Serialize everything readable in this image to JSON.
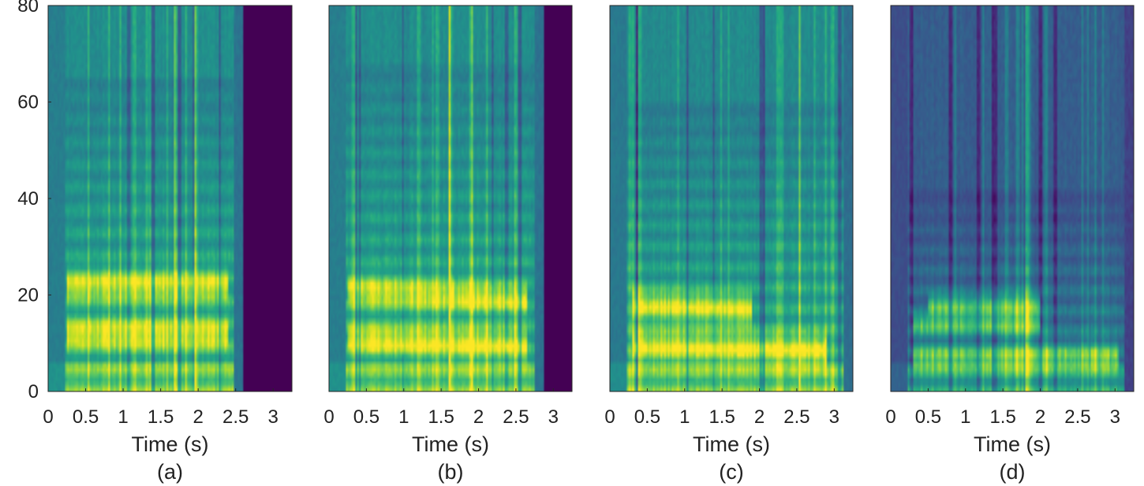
{
  "chart_data": [
    {
      "type": "heatmap",
      "panel_label": "(a)",
      "xlabel": "Time (s)",
      "ylabel": "",
      "xlim": [
        0,
        3.25
      ],
      "ylim": [
        0,
        80
      ],
      "xticks": [
        "0",
        "0.5",
        "1",
        "1.5",
        "2",
        "2.5",
        "3"
      ],
      "yticks": [
        "0",
        "20",
        "40",
        "60",
        "80"
      ],
      "colormap": "viridis",
      "content_end_s": 2.6,
      "padding_color": "#440154",
      "formant_bands": [
        {
          "center": 12,
          "width": 3,
          "start_s": 0.25,
          "end_s": 2.4,
          "slope": 0
        },
        {
          "center": 22,
          "width": 3,
          "start_s": 0.25,
          "end_s": 2.4,
          "slope": 0
        }
      ],
      "harmonic_spacing": 4.7,
      "max_harmonic_bin": 65,
      "background_level": 0.35,
      "seed": 11
    },
    {
      "type": "heatmap",
      "panel_label": "(b)",
      "xlabel": "Time (s)",
      "ylabel": "",
      "xlim": [
        0,
        3.25
      ],
      "ylim": [
        0,
        80
      ],
      "xticks": [
        "0",
        "0.5",
        "1",
        "1.5",
        "2",
        "2.5",
        "3"
      ],
      "yticks": [],
      "colormap": "viridis",
      "content_end_s": 2.87,
      "padding_color": "#440154",
      "formant_bands": [
        {
          "center": 11,
          "width": 3,
          "start_s": 0.25,
          "end_s": 2.65,
          "slope": -1.5
        },
        {
          "center": 21,
          "width": 3,
          "start_s": 0.25,
          "end_s": 2.65,
          "slope": -2
        }
      ],
      "harmonic_spacing": 4.5,
      "max_harmonic_bin": 68,
      "background_level": 0.35,
      "seed": 23
    },
    {
      "type": "heatmap",
      "panel_label": "(c)",
      "xlabel": "Time (s)",
      "ylabel": "",
      "xlim": [
        0,
        3.25
      ],
      "ylim": [
        0,
        80
      ],
      "xticks": [
        "0",
        "0.5",
        "1",
        "1.5",
        "2",
        "2.5",
        "3"
      ],
      "yticks": [],
      "colormap": "viridis",
      "content_end_s": 3.25,
      "padding_color": "#440154",
      "formant_bands": [
        {
          "center": 9.5,
          "width": 3,
          "start_s": 0.3,
          "end_s": 2.9,
          "slope": -1
        },
        {
          "center": 18,
          "width": 3,
          "start_s": 0.3,
          "end_s": 1.9,
          "slope": -1
        }
      ],
      "harmonic_spacing": 4.3,
      "max_harmonic_bin": 60,
      "background_level": 0.33,
      "seed": 37
    },
    {
      "type": "heatmap",
      "panel_label": "(d)",
      "xlabel": "Time (s)",
      "ylabel": "",
      "xlim": [
        0,
        3.25
      ],
      "ylim": [
        0,
        80
      ],
      "xticks": [
        "0",
        "0.5",
        "1",
        "1.5",
        "2",
        "2.5",
        "3"
      ],
      "yticks": [],
      "colormap": "viridis",
      "content_end_s": 3.25,
      "padding_color": "#440154",
      "formant_bands": [
        {
          "center": 7,
          "width": 2.5,
          "start_s": 0.3,
          "end_s": 3.05,
          "slope": 0
        },
        {
          "center": 14,
          "width": 2,
          "start_s": 0.3,
          "end_s": 2.0,
          "slope": 0
        },
        {
          "center": 18,
          "width": 2,
          "start_s": 0.5,
          "end_s": 2.0,
          "slope": 0
        }
      ],
      "harmonic_spacing": 4.2,
      "max_harmonic_bin": 42,
      "background_level": 0.16,
      "seed": 53
    }
  ]
}
